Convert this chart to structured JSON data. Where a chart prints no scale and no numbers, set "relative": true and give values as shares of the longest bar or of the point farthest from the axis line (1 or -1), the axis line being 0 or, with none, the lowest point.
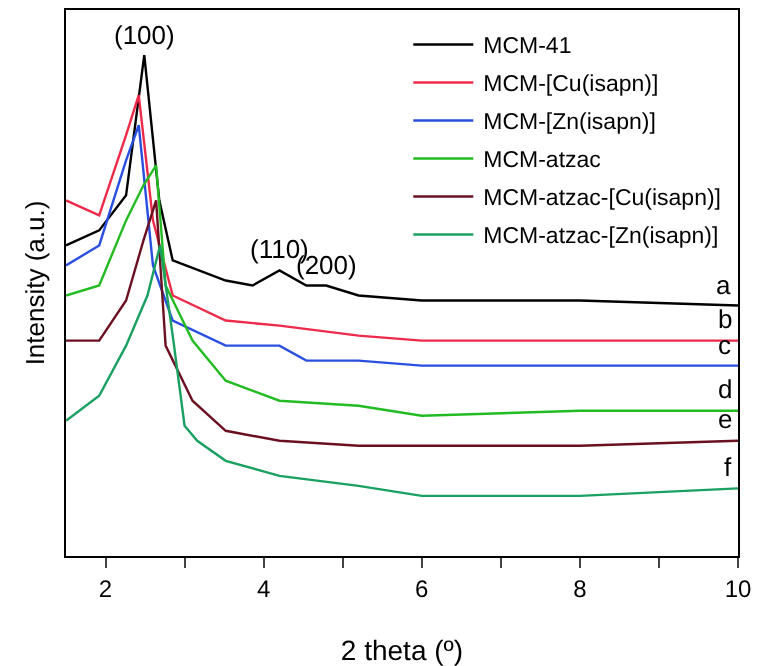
{
  "chart_data": {
    "type": "line",
    "relative": true,
    "xlabel": "2 theta (º)",
    "ylabel": "Intensity (a.u.)",
    "xlim": [
      1.5,
      10
    ],
    "xticks": [
      2,
      {
        "value": 3,
        "label": null
      },
      4,
      {
        "value": 5,
        "label": null
      },
      6,
      {
        "value": 7,
        "label": null
      },
      8,
      {
        "value": 9,
        "label": null
      },
      10
    ],
    "legend": "top right",
    "grid": false,
    "marker": "none",
    "line_style": "solid",
    "series": [
      {
        "name": "MCM-41",
        "color": "#000000",
        "x": [
          1.5,
          1.92,
          2.26,
          2.49,
          2.68,
          2.85,
          3.52,
          3.86,
          4.2,
          4.54,
          4.79,
          5.2,
          6,
          8,
          10
        ],
        "values": [
          0.62,
          0.65,
          0.72,
          1.0,
          0.71,
          0.59,
          0.55,
          0.54,
          0.57,
          0.54,
          0.54,
          0.52,
          0.51,
          0.51,
          0.5
        ]
      },
      {
        "name": "MCM-[Cu(isapn)]",
        "color": "#ee2a4a",
        "x": [
          1.5,
          1.92,
          2.26,
          2.42,
          2.6,
          2.85,
          3.52,
          4.2,
          5.2,
          6,
          8,
          10
        ],
        "values": [
          0.71,
          0.68,
          0.84,
          0.92,
          0.67,
          0.52,
          0.47,
          0.46,
          0.44,
          0.43,
          0.43,
          0.43
        ]
      },
      {
        "name": "MCM-[Zn(isapn)]",
        "color": "#2a4fe0",
        "x": [
          1.5,
          1.92,
          2.26,
          2.42,
          2.6,
          2.85,
          3.52,
          4.2,
          4.54,
          5.2,
          6,
          8,
          10
        ],
        "values": [
          0.58,
          0.62,
          0.79,
          0.86,
          0.58,
          0.47,
          0.42,
          0.42,
          0.39,
          0.39,
          0.38,
          0.38,
          0.38
        ]
      },
      {
        "name": "MCM-atzac",
        "color": "#22bb22",
        "x": [
          1.5,
          1.92,
          2.26,
          2.48,
          2.64,
          2.76,
          3.1,
          3.52,
          4.2,
          5.2,
          6,
          8,
          10
        ],
        "values": [
          0.52,
          0.54,
          0.67,
          0.74,
          0.78,
          0.54,
          0.43,
          0.35,
          0.31,
          0.3,
          0.28,
          0.29,
          0.29
        ]
      },
      {
        "name": "MCM-atzac-[Cu(isapn)]",
        "color": "#6b1020",
        "x": [
          1.5,
          1.92,
          2.26,
          2.48,
          2.64,
          2.76,
          3.1,
          3.52,
          4.2,
          5.2,
          6,
          8,
          10
        ],
        "values": [
          0.43,
          0.43,
          0.51,
          0.63,
          0.71,
          0.42,
          0.31,
          0.25,
          0.23,
          0.22,
          0.22,
          0.22,
          0.23
        ]
      },
      {
        "name": "MCM-atzac-[Zn(isapn)]",
        "color": "#1aa060",
        "x": [
          1.5,
          1.92,
          2.26,
          2.53,
          2.69,
          2.85,
          3.0,
          3.16,
          3.52,
          4.2,
          5.2,
          6,
          8,
          10
        ],
        "values": [
          0.27,
          0.32,
          0.42,
          0.52,
          0.62,
          0.44,
          0.26,
          0.23,
          0.19,
          0.16,
          0.14,
          0.12,
          0.12,
          0.135
        ]
      }
    ],
    "annotations": [
      {
        "text": "(100)",
        "x": 2.49,
        "y": 1.0
      },
      {
        "text": "(110)",
        "x": 4.2,
        "y": 0.57
      },
      {
        "text": "(200)",
        "x": 4.79,
        "y": 0.54
      },
      {
        "text": "a",
        "x": 10,
        "y": 0.5
      },
      {
        "text": "b",
        "x": 10,
        "y": 0.43
      },
      {
        "text": "c",
        "x": 10,
        "y": 0.38
      },
      {
        "text": "d",
        "x": 10,
        "y": 0.29
      },
      {
        "text": "e",
        "x": 10,
        "y": 0.23
      },
      {
        "text": "f",
        "x": 10,
        "y": 0.135
      }
    ]
  }
}
